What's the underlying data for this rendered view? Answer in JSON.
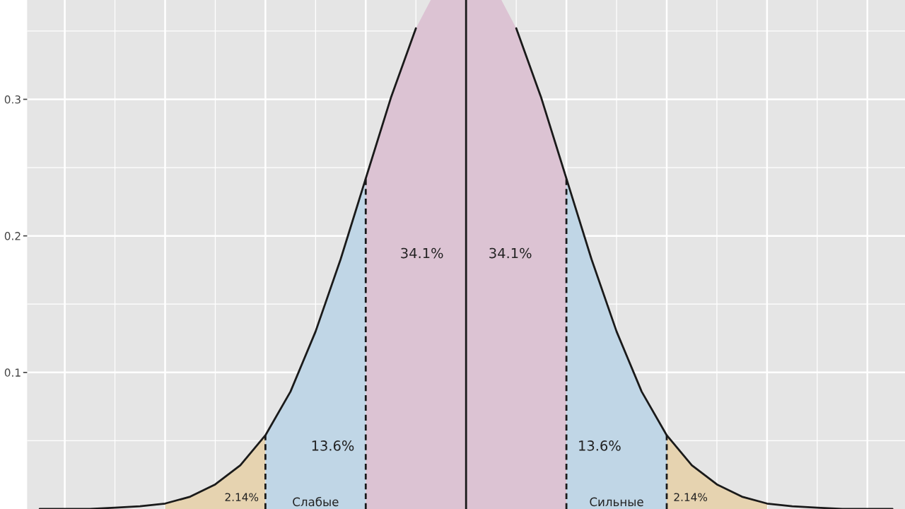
{
  "chart_data": {
    "type": "area",
    "categories": [
      null,
      null,
      null,
      null,
      null,
      null,
      null,
      null,
      null,
      null,
      null,
      null,
      null,
      null,
      null,
      null,
      null,
      null,
      null,
      null,
      null,
      null,
      null,
      null,
      null,
      null,
      null,
      null,
      null,
      null,
      null,
      null,
      null,
      null,
      null
    ],
    "ylim": [
      0,
      0.41
    ],
    "yticks": [
      0.1,
      0.2,
      0.3
    ],
    "tick_labels": "y",
    "grid": true,
    "series": [
      {
        "name": "2.14%",
        "color": "#e6d3b0",
        "values": [
          null,
          null,
          null,
          null,
          null,
          0.004,
          0.009,
          0.018,
          0.032,
          0.054,
          null,
          null,
          null,
          null,
          null,
          null,
          null,
          null,
          null,
          null,
          null,
          null,
          null,
          null,
          null,
          null,
          null,
          null,
          null,
          null,
          null,
          null,
          null,
          null,
          null
        ]
      },
      {
        "name": "34.1%",
        "color": "#dcc3d3",
        "line_style": "solid",
        "values": [
          null,
          null,
          null,
          null,
          null,
          null,
          null,
          null,
          null,
          null,
          null,
          null,
          null,
          0.242,
          0.301,
          0.352,
          0.387,
          0.399,
          null,
          null,
          null,
          null,
          null,
          null,
          null,
          null,
          null,
          null,
          null,
          null,
          null,
          null,
          null,
          null,
          null
        ]
      },
      {
        "name": "34.1%",
        "color": "#dcc3d3",
        "line_style": "solid",
        "values": [
          null,
          null,
          null,
          null,
          null,
          null,
          null,
          null,
          null,
          null,
          null,
          null,
          null,
          null,
          null,
          null,
          null,
          0.399,
          0.387,
          0.352,
          0.301,
          0.242,
          null,
          null,
          null,
          null,
          null,
          null,
          null,
          null,
          null,
          null,
          null,
          null,
          null
        ]
      },
      {
        "name": "13.6%",
        "color": "#c0d6e6",
        "line_style": "dashed",
        "values": [
          null,
          null,
          null,
          null,
          null,
          null,
          null,
          null,
          null,
          0.054,
          0.086,
          0.13,
          0.183,
          0.242,
          null,
          null,
          null,
          null,
          null,
          null,
          null,
          null,
          null,
          null,
          null,
          null,
          null,
          null,
          null,
          null,
          null,
          null,
          null,
          null,
          null
        ]
      },
      {
        "name": "13.6%",
        "color": "#c0d6e6",
        "line_style": "dashed",
        "values": [
          null,
          null,
          null,
          null,
          null,
          null,
          null,
          null,
          null,
          null,
          null,
          null,
          null,
          null,
          null,
          null,
          null,
          null,
          null,
          null,
          null,
          0.242,
          0.183,
          0.13,
          0.086,
          0.054,
          null,
          null,
          null,
          null,
          null,
          null,
          null,
          null,
          null
        ]
      },
      {
        "name": "2.14%",
        "color": "#e6d3b0",
        "values": [
          null,
          null,
          null,
          null,
          null,
          null,
          null,
          null,
          null,
          null,
          null,
          null,
          null,
          null,
          null,
          null,
          null,
          null,
          null,
          null,
          null,
          null,
          null,
          null,
          null,
          0.054,
          0.032,
          0.018,
          0.009,
          0.004,
          null,
          null,
          null,
          null,
          null
        ]
      },
      {
        "type": "line",
        "color": "#1a1a1a",
        "line_style": "solid",
        "values": [
          0,
          0,
          0,
          0.001,
          0.002,
          0.004,
          0.009,
          0.018,
          0.032,
          0.054,
          0.086,
          0.13,
          0.183,
          0.242,
          0.301,
          0.352,
          null,
          null,
          null,
          0.352,
          0.301,
          0.242,
          0.183,
          0.13,
          0.086,
          0.054,
          0.032,
          0.018,
          0.009,
          0.004,
          0.002,
          0.001,
          0,
          0,
          0
        ]
      }
    ],
    "annotations": [
      "Слабые",
      "Сильные"
    ]
  }
}
